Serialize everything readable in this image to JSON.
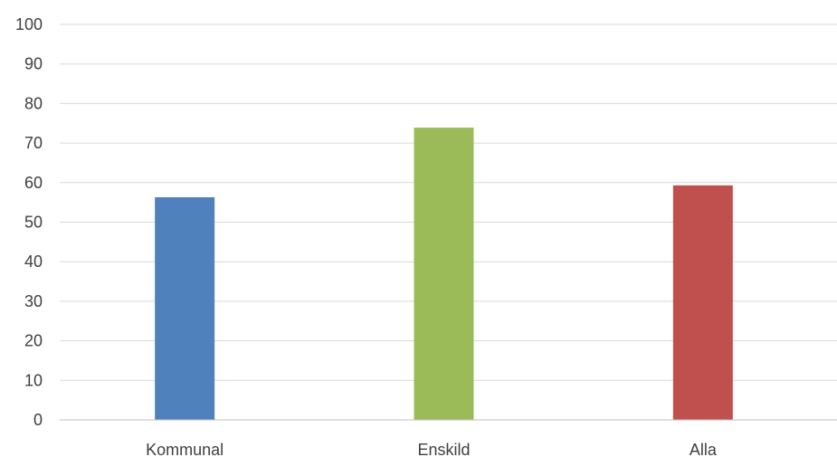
{
  "chart_data": {
    "type": "bar",
    "title": "",
    "xlabel": "",
    "ylabel": "",
    "categories": [
      "Kommunal",
      "Enskild",
      "Alla"
    ],
    "values": [
      56.3,
      73.9,
      59.3
    ],
    "colors": [
      "#4f81bd",
      "#9bbb59",
      "#c0504d"
    ],
    "ylim": [
      0,
      100
    ],
    "yticks": [
      0,
      10,
      20,
      30,
      40,
      50,
      60,
      70,
      80,
      90,
      100
    ],
    "grid": true,
    "legend": "none"
  }
}
